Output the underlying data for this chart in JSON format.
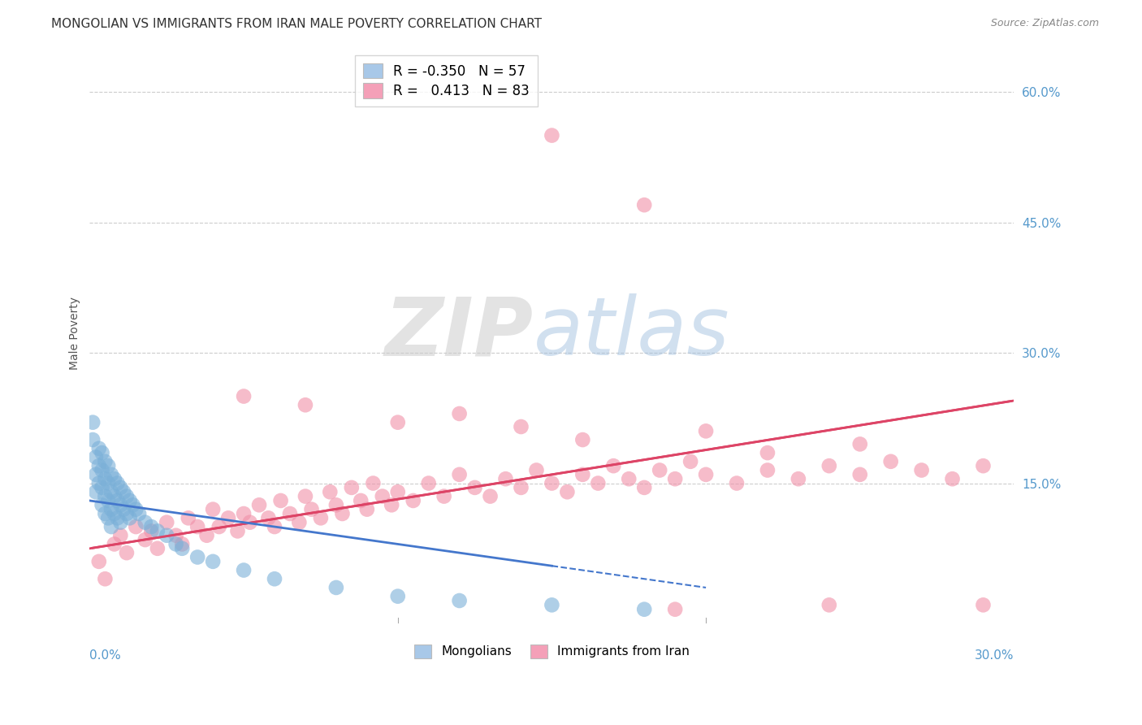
{
  "title": "MONGOLIAN VS IMMIGRANTS FROM IRAN MALE POVERTY CORRELATION CHART",
  "source": "Source: ZipAtlas.com",
  "ylabel": "Male Poverty",
  "xlim": [
    0.0,
    0.3
  ],
  "ylim": [
    -0.005,
    0.65
  ],
  "yticks": [
    0.0,
    0.15,
    0.3,
    0.45,
    0.6
  ],
  "mongolian_R": -0.35,
  "mongolian_N": 57,
  "iran_R": 0.413,
  "iran_N": 83,
  "legend_color_mongolian": "#a8c8e8",
  "legend_color_iran": "#f4a0b8",
  "mongolian_color": "#7ab0d8",
  "iran_color": "#f090a8",
  "trendline_mongolian_color": "#4477cc",
  "trendline_iran_color": "#dd4466",
  "background_color": "#ffffff",
  "grid_color": "#cccccc",
  "mongolian_x": [
    0.001,
    0.001,
    0.002,
    0.002,
    0.002,
    0.003,
    0.003,
    0.003,
    0.004,
    0.004,
    0.004,
    0.004,
    0.005,
    0.005,
    0.005,
    0.005,
    0.006,
    0.006,
    0.006,
    0.006,
    0.007,
    0.007,
    0.007,
    0.007,
    0.008,
    0.008,
    0.008,
    0.009,
    0.009,
    0.009,
    0.01,
    0.01,
    0.01,
    0.011,
    0.011,
    0.012,
    0.012,
    0.013,
    0.013,
    0.014,
    0.015,
    0.016,
    0.018,
    0.02,
    0.022,
    0.025,
    0.028,
    0.03,
    0.035,
    0.04,
    0.05,
    0.06,
    0.08,
    0.1,
    0.12,
    0.15,
    0.18
  ],
  "mongolian_y": [
    0.2,
    0.22,
    0.18,
    0.16,
    0.14,
    0.19,
    0.17,
    0.15,
    0.185,
    0.165,
    0.145,
    0.125,
    0.175,
    0.155,
    0.135,
    0.115,
    0.17,
    0.15,
    0.13,
    0.11,
    0.16,
    0.14,
    0.12,
    0.1,
    0.155,
    0.135,
    0.115,
    0.15,
    0.13,
    0.11,
    0.145,
    0.125,
    0.105,
    0.14,
    0.12,
    0.135,
    0.115,
    0.13,
    0.11,
    0.125,
    0.12,
    0.115,
    0.105,
    0.1,
    0.095,
    0.09,
    0.08,
    0.075,
    0.065,
    0.06,
    0.05,
    0.04,
    0.03,
    0.02,
    0.015,
    0.01,
    0.005
  ],
  "iran_x": [
    0.003,
    0.005,
    0.008,
    0.01,
    0.012,
    0.015,
    0.018,
    0.02,
    0.022,
    0.025,
    0.028,
    0.03,
    0.032,
    0.035,
    0.038,
    0.04,
    0.042,
    0.045,
    0.048,
    0.05,
    0.052,
    0.055,
    0.058,
    0.06,
    0.062,
    0.065,
    0.068,
    0.07,
    0.072,
    0.075,
    0.078,
    0.08,
    0.082,
    0.085,
    0.088,
    0.09,
    0.092,
    0.095,
    0.098,
    0.1,
    0.105,
    0.11,
    0.115,
    0.12,
    0.125,
    0.13,
    0.135,
    0.14,
    0.145,
    0.15,
    0.155,
    0.16,
    0.165,
    0.17,
    0.175,
    0.18,
    0.185,
    0.19,
    0.195,
    0.2,
    0.21,
    0.22,
    0.23,
    0.24,
    0.25,
    0.26,
    0.27,
    0.28,
    0.29,
    0.15,
    0.18,
    0.05,
    0.12,
    0.2,
    0.25,
    0.1,
    0.16,
    0.22,
    0.07,
    0.14,
    0.19,
    0.24,
    0.29
  ],
  "iran_y": [
    0.06,
    0.04,
    0.08,
    0.09,
    0.07,
    0.1,
    0.085,
    0.095,
    0.075,
    0.105,
    0.09,
    0.08,
    0.11,
    0.1,
    0.09,
    0.12,
    0.1,
    0.11,
    0.095,
    0.115,
    0.105,
    0.125,
    0.11,
    0.1,
    0.13,
    0.115,
    0.105,
    0.135,
    0.12,
    0.11,
    0.14,
    0.125,
    0.115,
    0.145,
    0.13,
    0.12,
    0.15,
    0.135,
    0.125,
    0.14,
    0.13,
    0.15,
    0.135,
    0.16,
    0.145,
    0.135,
    0.155,
    0.145,
    0.165,
    0.15,
    0.14,
    0.16,
    0.15,
    0.17,
    0.155,
    0.145,
    0.165,
    0.155,
    0.175,
    0.16,
    0.15,
    0.165,
    0.155,
    0.17,
    0.16,
    0.175,
    0.165,
    0.155,
    0.17,
    0.55,
    0.47,
    0.25,
    0.23,
    0.21,
    0.195,
    0.22,
    0.2,
    0.185,
    0.24,
    0.215,
    0.005,
    0.01,
    0.01
  ],
  "iran_trendline_x0": 0.0,
  "iran_trendline_y0": 0.075,
  "iran_trendline_x1": 0.3,
  "iran_trendline_y1": 0.245,
  "mong_trendline_x0": 0.0,
  "mong_trendline_y0": 0.13,
  "mong_trendline_x1": 0.2,
  "mong_trendline_y1": 0.03
}
